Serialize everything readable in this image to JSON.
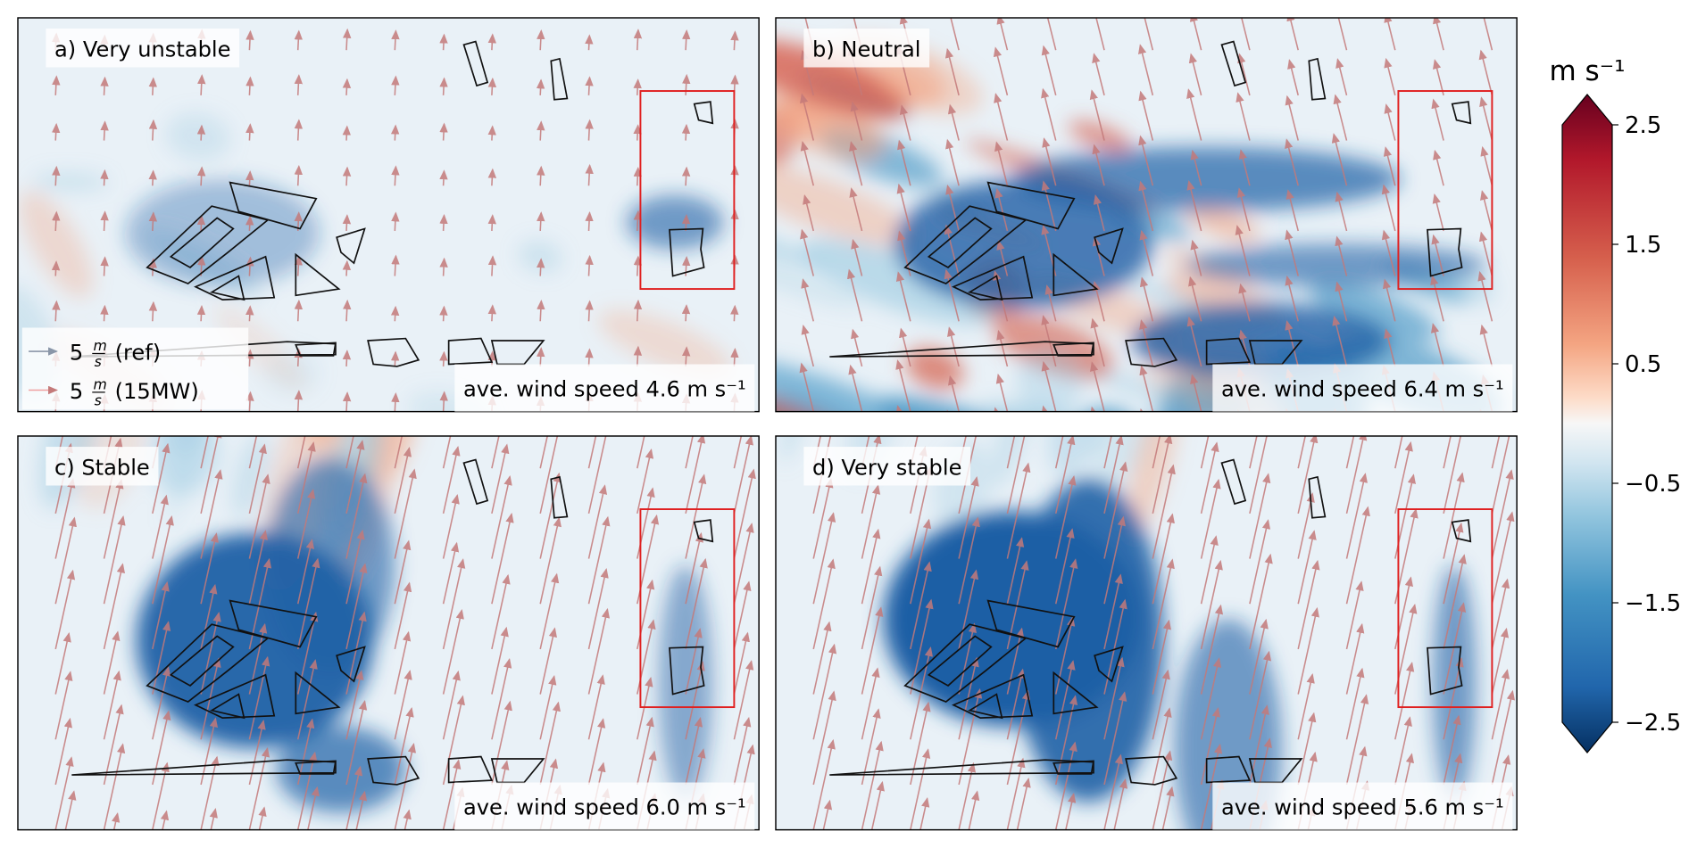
{
  "panels": [
    {
      "label": "a) Very unstable",
      "wind_speed": "ave. wind speed 4.6 m s⁻¹"
    },
    {
      "label": "b) Neutral",
      "wind_speed": "ave. wind speed 6.4 m s⁻¹"
    },
    {
      "label": "c) Stable",
      "wind_speed": "ave. wind speed 6.0 m s⁻¹"
    },
    {
      "label": "d) Very stable",
      "wind_speed": "ave. wind speed 5.6 m s⁻¹"
    }
  ],
  "legend": [
    {
      "magnitude": "5",
      "numerator": "m",
      "denominator": "s",
      "name": "(ref)"
    },
    {
      "magnitude": "5",
      "numerator": "m",
      "denominator": "s",
      "name": "(15MW)"
    }
  ],
  "colorbar": {
    "label": "m s⁻¹",
    "clim": [
      -2.5,
      2.5
    ],
    "ticks": [
      2.5,
      1.5,
      0.5,
      {
        "value": -0.5,
        "label": "−0.5"
      },
      {
        "value": -1.5,
        "label": "−1.5"
      },
      {
        "value": -2.5,
        "label": "−2.5"
      }
    ]
  }
}
